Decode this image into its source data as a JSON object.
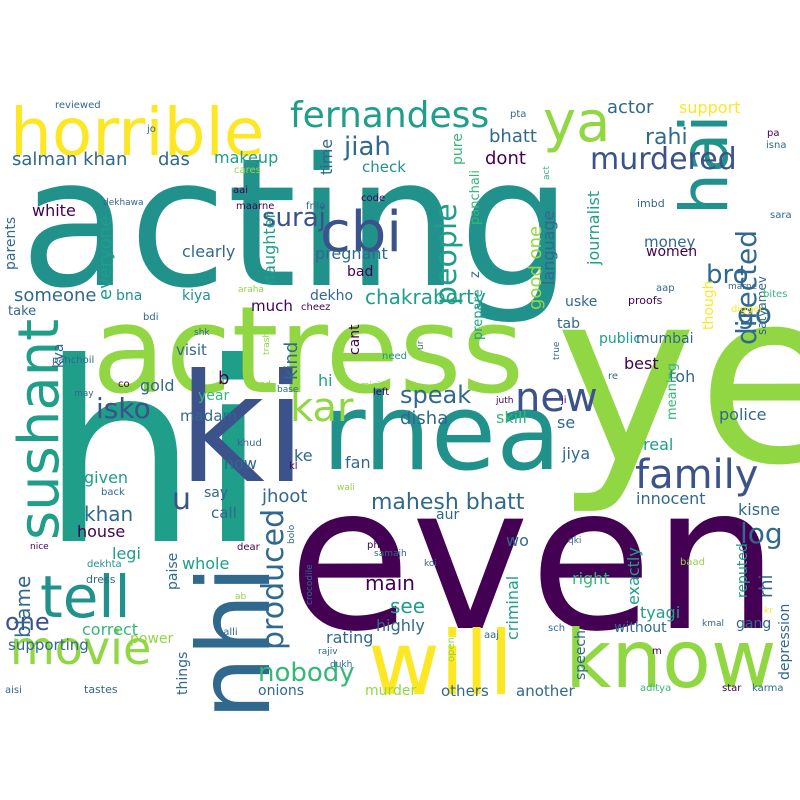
{
  "title": "word cloud",
  "palette": {
    "dark_purple": "#440154",
    "indigo": "#3b528b",
    "blue": "#31688e",
    "teal": "#21918c",
    "sea_green": "#1f9e89",
    "green": "#35b779",
    "lime": "#90d743",
    "yellow": "#fde725"
  },
  "words": [
    {
      "text": "acting"
    },
    {
      "text": "ye"
    },
    {
      "text": "even"
    },
    {
      "text": "hi"
    },
    {
      "text": "actress"
    },
    {
      "text": "rhea"
    },
    {
      "text": "ki"
    },
    {
      "text": "nhi"
    },
    {
      "text": "will"
    },
    {
      "text": "know"
    },
    {
      "text": "horrible"
    },
    {
      "text": "hai"
    },
    {
      "text": "sushant"
    },
    {
      "text": "cbi"
    },
    {
      "text": "tell"
    },
    {
      "text": "movie"
    },
    {
      "text": "ya"
    },
    {
      "text": "family"
    },
    {
      "text": "kar"
    },
    {
      "text": "new"
    },
    {
      "text": "fernandess"
    },
    {
      "text": "murdered"
    },
    {
      "text": "suraj"
    },
    {
      "text": "bro"
    },
    {
      "text": "produced"
    },
    {
      "text": "people"
    },
    {
      "text": "isko"
    },
    {
      "text": "log"
    },
    {
      "text": "nobody"
    },
    {
      "text": "chakraborty"
    },
    {
      "text": "directed"
    },
    {
      "text": "jiah"
    },
    {
      "text": "go"
    },
    {
      "text": "rahi"
    },
    {
      "text": "speak"
    },
    {
      "text": "mahesh bhatt"
    },
    {
      "text": "u"
    },
    {
      "text": "one"
    },
    {
      "text": "salman khan"
    },
    {
      "text": "das"
    },
    {
      "text": "someone"
    },
    {
      "text": "khan"
    },
    {
      "text": "see"
    },
    {
      "text": "main"
    },
    {
      "text": "blame"
    },
    {
      "text": "bhatt"
    },
    {
      "text": "dont"
    },
    {
      "text": "actor"
    },
    {
      "text": "support"
    },
    {
      "text": "good one"
    },
    {
      "text": "check"
    },
    {
      "text": "clearly"
    },
    {
      "text": "makeup"
    },
    {
      "text": "white"
    },
    {
      "text": "everyone"
    },
    {
      "text": "time"
    },
    {
      "text": "pure"
    },
    {
      "text": "language"
    },
    {
      "text": "journalist"
    },
    {
      "text": "pregnant"
    },
    {
      "text": "daughter"
    },
    {
      "text": "bna"
    },
    {
      "text": "kiya"
    },
    {
      "text": "dekho"
    },
    {
      "text": "much"
    },
    {
      "text": "visit"
    },
    {
      "text": "hi"
    },
    {
      "text": "kind"
    },
    {
      "text": "disha"
    },
    {
      "text": "skill"
    },
    {
      "text": "jiya"
    },
    {
      "text": "real"
    },
    {
      "text": "police"
    },
    {
      "text": "innocent"
    },
    {
      "text": "kisne"
    },
    {
      "text": "money"
    },
    {
      "text": "women"
    },
    {
      "text": "tab"
    },
    {
      "text": "public"
    },
    {
      "text": "mumbai"
    },
    {
      "text": "best"
    },
    {
      "text": "toh"
    },
    {
      "text": "b"
    },
    {
      "text": "gold"
    },
    {
      "text": "year"
    },
    {
      "text": "madam"
    },
    {
      "text": "now"
    },
    {
      "text": "say"
    },
    {
      "text": "call"
    },
    {
      "text": "given"
    },
    {
      "text": "house"
    },
    {
      "text": "legi"
    },
    {
      "text": "whole"
    },
    {
      "text": "fan"
    },
    {
      "text": "ke"
    },
    {
      "text": "jhoot"
    },
    {
      "text": "se"
    },
    {
      "text": "aur"
    },
    {
      "text": "wo"
    },
    {
      "text": "criminal"
    },
    {
      "text": "exactly"
    },
    {
      "text": "right"
    },
    {
      "text": "tyagi"
    },
    {
      "text": "reputed"
    },
    {
      "text": "rhi"
    },
    {
      "text": "gang"
    },
    {
      "text": "depression"
    },
    {
      "text": "correct"
    },
    {
      "text": "power"
    },
    {
      "text": "supporting"
    },
    {
      "text": "rating"
    },
    {
      "text": "highly"
    },
    {
      "text": "murder"
    },
    {
      "text": "others"
    },
    {
      "text": "another"
    },
    {
      "text": "onions"
    },
    {
      "text": "speech"
    },
    {
      "text": "without"
    },
    {
      "text": "things"
    },
    {
      "text": "paise"
    },
    {
      "text": "take"
    },
    {
      "text": "kya"
    },
    {
      "text": "parents"
    },
    {
      "text": "bad"
    },
    {
      "text": "cant"
    },
    {
      "text": "uske"
    },
    {
      "text": "prepare"
    },
    {
      "text": "though"
    },
    {
      "text": "satyamev"
    },
    {
      "text": "meaning"
    },
    {
      "text": "panchali"
    },
    {
      "text": "z"
    },
    {
      "text": "imbd"
    },
    {
      "text": "aap"
    },
    {
      "text": "proofs"
    },
    {
      "text": "bites"
    },
    {
      "text": "digger"
    },
    {
      "text": "sara"
    },
    {
      "text": "pa"
    },
    {
      "text": "isna"
    },
    {
      "text": "marne"
    },
    {
      "text": "reviewed"
    },
    {
      "text": "pta"
    },
    {
      "text": "jo"
    },
    {
      "text": "act"
    },
    {
      "text": "cares"
    },
    {
      "text": "aai"
    },
    {
      "text": "maarne"
    },
    {
      "text": "dekhawa"
    },
    {
      "text": "frllo"
    },
    {
      "text": "code"
    },
    {
      "text": "araha"
    },
    {
      "text": "cheez"
    },
    {
      "text": "bdi"
    },
    {
      "text": "shk"
    },
    {
      "text": "trash"
    },
    {
      "text": "poor"
    },
    {
      "text": "need"
    },
    {
      "text": "ur"
    },
    {
      "text": "kamini"
    },
    {
      "text": "left"
    },
    {
      "text": "juth"
    },
    {
      "text": "ji"
    },
    {
      "text": "true"
    },
    {
      "text": "re"
    },
    {
      "text": "panchoil"
    },
    {
      "text": "co"
    },
    {
      "text": "kand"
    },
    {
      "text": "may"
    },
    {
      "text": "base"
    },
    {
      "text": "khud"
    },
    {
      "text": "kl"
    },
    {
      "text": "back"
    },
    {
      "text": "wali"
    },
    {
      "text": "nice"
    },
    {
      "text": "dekhta"
    },
    {
      "text": "dress"
    },
    {
      "text": "dear"
    },
    {
      "text": "bolo"
    },
    {
      "text": "crocodile"
    },
    {
      "text": "ab"
    },
    {
      "text": "salli"
    },
    {
      "text": "rajiv"
    },
    {
      "text": "dukh"
    },
    {
      "text": "phir"
    },
    {
      "text": "samajh"
    },
    {
      "text": "koi"
    },
    {
      "text": "qki"
    },
    {
      "text": "baad"
    },
    {
      "text": "kmal"
    },
    {
      "text": "kr"
    },
    {
      "text": "open"
    },
    {
      "text": "aaj"
    },
    {
      "text": "sch"
    },
    {
      "text": "m"
    },
    {
      "text": "aisi"
    },
    {
      "text": "tastes"
    },
    {
      "text": "aditya"
    },
    {
      "text": "star"
    },
    {
      "text": "karma"
    }
  ]
}
